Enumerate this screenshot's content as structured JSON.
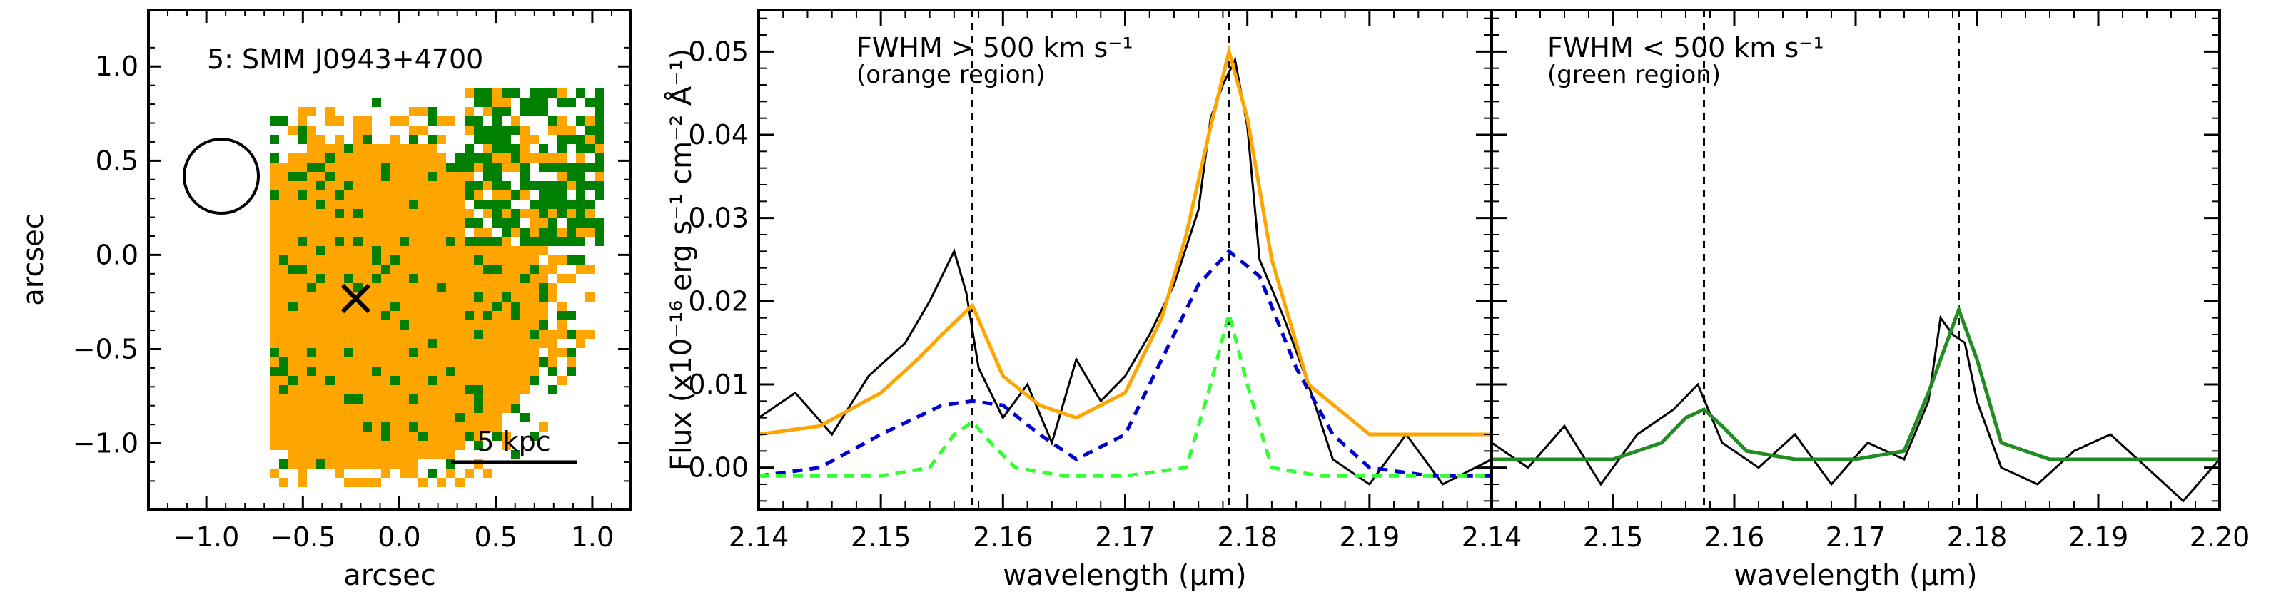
{
  "chart_data": [
    {
      "type": "map",
      "panel": "source map",
      "title": "5: SMM J0943+4700",
      "xlabel": "arcsec",
      "ylabel": "arcsec",
      "xlim": [
        -1.3,
        1.2
      ],
      "ylim": [
        -1.35,
        1.3
      ],
      "xticks": [
        "−1.0",
        "−0.5",
        "0.0",
        "0.5",
        "1.0"
      ],
      "yticks": [
        "−1.0",
        "−0.5",
        "0.0",
        "0.5",
        "1.0"
      ],
      "scalebar_label": "5 kpc",
      "center_marker": [
        -0.2,
        -0.25
      ],
      "beam": {
        "x": -0.88,
        "y": 0.4,
        "radius": 0.2
      },
      "region_colors": {
        "broad": "#ffa500",
        "narrow": "#008000"
      }
    },
    {
      "type": "line",
      "panel": "broad spectrum",
      "annotation": "FWHM > 500 km s⁻¹",
      "annotation_sub": "(orange region)",
      "xlabel": "wavelength (μm)",
      "ylabel": "Flux (x10⁻¹⁶ erg s⁻¹ cm⁻² Å⁻¹)",
      "xlim": [
        2.14,
        2.2
      ],
      "ylim": [
        -0.005,
        0.055
      ],
      "xticks": [
        "2.14",
        "2.15",
        "2.16",
        "2.17",
        "2.18",
        "2.19"
      ],
      "yticks": [
        "0.00",
        "0.01",
        "0.02",
        "0.03",
        "0.04",
        "0.05"
      ],
      "vlines": [
        2.1575,
        2.1785
      ],
      "series": [
        {
          "color": "#000000",
          "style": "solid",
          "kind": "data",
          "x": [
            2.14,
            2.143,
            2.146,
            2.149,
            2.152,
            2.154,
            2.156,
            2.157,
            2.158,
            2.16,
            2.162,
            2.164,
            2.166,
            2.168,
            2.17,
            2.172,
            2.174,
            2.176,
            2.177,
            2.178,
            2.179,
            2.18,
            2.181,
            2.183,
            2.185,
            2.187,
            2.19,
            2.193,
            2.196,
            2.2
          ],
          "y": [
            0.006,
            0.009,
            0.004,
            0.011,
            0.015,
            0.02,
            0.026,
            0.021,
            0.012,
            0.006,
            0.01,
            0.003,
            0.013,
            0.008,
            0.011,
            0.016,
            0.022,
            0.031,
            0.042,
            0.046,
            0.049,
            0.041,
            0.025,
            0.018,
            0.01,
            0.001,
            -0.002,
            0.004,
            -0.002,
            0.001
          ]
        },
        {
          "color": "#ffa500",
          "style": "solid",
          "kind": "total fit",
          "x": [
            2.14,
            2.145,
            2.15,
            2.153,
            2.155,
            2.1575,
            2.16,
            2.163,
            2.166,
            2.17,
            2.173,
            2.175,
            2.177,
            2.1785,
            2.18,
            2.182,
            2.185,
            2.19,
            2.195,
            2.2
          ],
          "y": [
            0.004,
            0.005,
            0.009,
            0.013,
            0.016,
            0.0195,
            0.011,
            0.0075,
            0.006,
            0.009,
            0.018,
            0.028,
            0.041,
            0.05,
            0.042,
            0.025,
            0.01,
            0.004,
            0.004,
            0.004
          ]
        },
        {
          "color": "#0000cc",
          "style": "dashed",
          "kind": "broad component",
          "x": [
            2.14,
            2.145,
            2.15,
            2.155,
            2.1575,
            2.16,
            2.163,
            2.166,
            2.17,
            2.173,
            2.176,
            2.1785,
            2.181,
            2.184,
            2.187,
            2.19,
            2.195,
            2.2
          ],
          "y": [
            -0.001,
            0.0,
            0.004,
            0.0075,
            0.008,
            0.0075,
            0.004,
            0.001,
            0.004,
            0.013,
            0.022,
            0.026,
            0.023,
            0.012,
            0.004,
            0.0,
            -0.001,
            -0.001
          ]
        },
        {
          "color": "#33ff33",
          "style": "dashed",
          "kind": "narrow component",
          "x": [
            2.14,
            2.15,
            2.154,
            2.156,
            2.1575,
            2.159,
            2.161,
            2.165,
            2.17,
            2.175,
            2.177,
            2.1785,
            2.18,
            2.182,
            2.186,
            2.2
          ],
          "y": [
            -0.001,
            -0.001,
            0.0,
            0.004,
            0.0055,
            0.003,
            0.0,
            -0.001,
            -0.001,
            0.0,
            0.01,
            0.0185,
            0.01,
            0.0,
            -0.001,
            -0.001
          ]
        }
      ]
    },
    {
      "type": "line",
      "panel": "narrow spectrum",
      "annotation": "FWHM < 500 km s⁻¹",
      "annotation_sub": "(green region)",
      "xlabel": "wavelength (μm)",
      "xlim": [
        2.14,
        2.2
      ],
      "ylim": [
        -0.005,
        0.055
      ],
      "xticks": [
        "2.14",
        "2.15",
        "2.16",
        "2.17",
        "2.18",
        "2.19",
        "2.20"
      ],
      "vlines": [
        2.1575,
        2.1785
      ],
      "series": [
        {
          "color": "#000000",
          "style": "solid",
          "kind": "data",
          "x": [
            2.14,
            2.143,
            2.146,
            2.149,
            2.152,
            2.155,
            2.157,
            2.159,
            2.162,
            2.165,
            2.168,
            2.171,
            2.174,
            2.176,
            2.177,
            2.178,
            2.179,
            2.18,
            2.182,
            2.185,
            2.188,
            2.191,
            2.194,
            2.197,
            2.2
          ],
          "y": [
            0.003,
            0.0,
            0.005,
            -0.002,
            0.004,
            0.007,
            0.01,
            0.003,
            0.0,
            0.004,
            -0.002,
            0.003,
            0.001,
            0.008,
            0.018,
            0.016,
            0.015,
            0.008,
            0.0,
            -0.002,
            0.002,
            0.004,
            0.0,
            -0.004,
            0.001
          ]
        },
        {
          "color": "#228b22",
          "style": "solid",
          "kind": "fit",
          "x": [
            2.14,
            2.15,
            2.154,
            2.156,
            2.1575,
            2.159,
            2.161,
            2.165,
            2.17,
            2.174,
            2.176,
            2.1785,
            2.18,
            2.182,
            2.186,
            2.2
          ],
          "y": [
            0.001,
            0.001,
            0.003,
            0.006,
            0.007,
            0.005,
            0.002,
            0.001,
            0.001,
            0.002,
            0.009,
            0.019,
            0.013,
            0.003,
            0.001,
            0.001
          ]
        }
      ]
    }
  ]
}
